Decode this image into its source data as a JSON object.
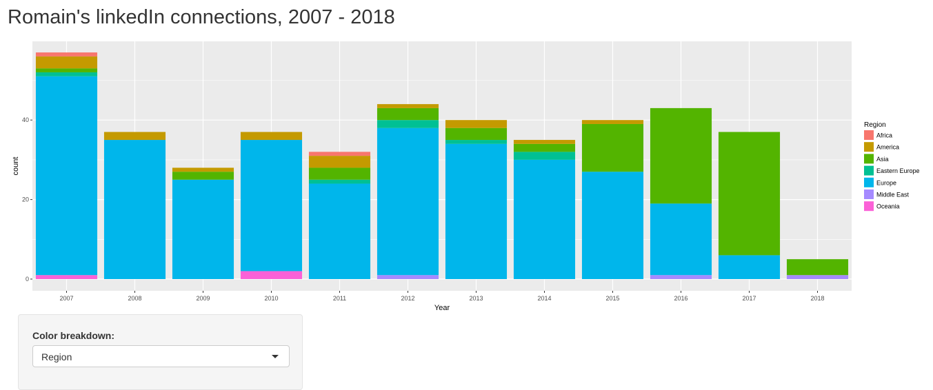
{
  "page": {
    "title": "Romain's linkedIn connections, 2007 - 2018"
  },
  "controls": {
    "color_label": "Color breakdown:",
    "color_selected": "Region",
    "caret_icon": "chevron-down-icon"
  },
  "colors": {
    "panel_bg": "#ebebeb",
    "grid": "#ffffff"
  },
  "chart_data": {
    "type": "bar",
    "stacked": true,
    "xlabel": "Year",
    "ylabel": "count",
    "ylim": [
      -3.5,
      60
    ],
    "yticks": [
      0,
      20,
      40
    ],
    "grid": true,
    "legend_title": "Region",
    "legend_position": "right",
    "categories": [
      "2007",
      "2008",
      "2009",
      "2010",
      "2011",
      "2012",
      "2013",
      "2014",
      "2015",
      "2016",
      "2017",
      "2018"
    ],
    "series": [
      {
        "name": "Africa",
        "color": "#f8766d",
        "values": [
          1,
          0,
          0,
          0,
          1,
          0,
          0,
          0,
          0,
          0,
          0,
          0
        ]
      },
      {
        "name": "America",
        "color": "#c49a00",
        "values": [
          3,
          2,
          1,
          2,
          3,
          1,
          2,
          1,
          1,
          0,
          0,
          0
        ]
      },
      {
        "name": "Asia",
        "color": "#53b400",
        "values": [
          1,
          0,
          2,
          0,
          3,
          3,
          3,
          2,
          12,
          24,
          31,
          4
        ]
      },
      {
        "name": "Eastern Europe",
        "color": "#00c094",
        "values": [
          1,
          0,
          0,
          0,
          1,
          2,
          1,
          2,
          0,
          0,
          0,
          0
        ]
      },
      {
        "name": "Europe",
        "color": "#00b6eb",
        "values": [
          50,
          35,
          25,
          33,
          24,
          37,
          34,
          30,
          27,
          18,
          6,
          0
        ]
      },
      {
        "name": "Middle East",
        "color": "#a58aff",
        "values": [
          0,
          0,
          0,
          0,
          0,
          1,
          0,
          0,
          0,
          1,
          0,
          1
        ]
      },
      {
        "name": "Oceania",
        "color": "#fb61d7",
        "values": [
          1,
          0,
          0,
          2,
          0,
          0,
          0,
          0,
          0,
          0,
          0,
          0
        ]
      }
    ]
  }
}
